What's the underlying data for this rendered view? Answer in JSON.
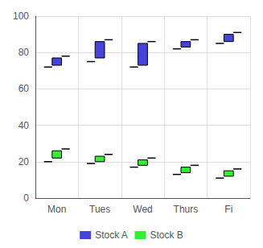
{
  "chart_data": {
    "type": "candlestick",
    "categories": [
      "Mon",
      "Tues",
      "Wed",
      "Thurs",
      "Fi"
    ],
    "series": [
      {
        "name": "Stock A",
        "color": "#4444dd",
        "low": [
          72,
          75,
          72,
          82,
          85
        ],
        "open": [
          73,
          77,
          73,
          83,
          86
        ],
        "close": [
          77,
          86,
          85,
          86,
          90
        ],
        "high": [
          78,
          87,
          86,
          87,
          91
        ]
      },
      {
        "name": "Stock B",
        "color": "#33ee33",
        "low": [
          20,
          19,
          17,
          13,
          11
        ],
        "open": [
          22,
          20,
          18,
          14,
          12
        ],
        "close": [
          26,
          23,
          21,
          17,
          15
        ],
        "high": [
          27,
          24,
          22,
          18,
          16
        ]
      }
    ],
    "ylim": [
      0,
      100
    ],
    "yticks": [
      0,
      20,
      40,
      60,
      80,
      100
    ],
    "grid": true,
    "legend": "bottom"
  }
}
